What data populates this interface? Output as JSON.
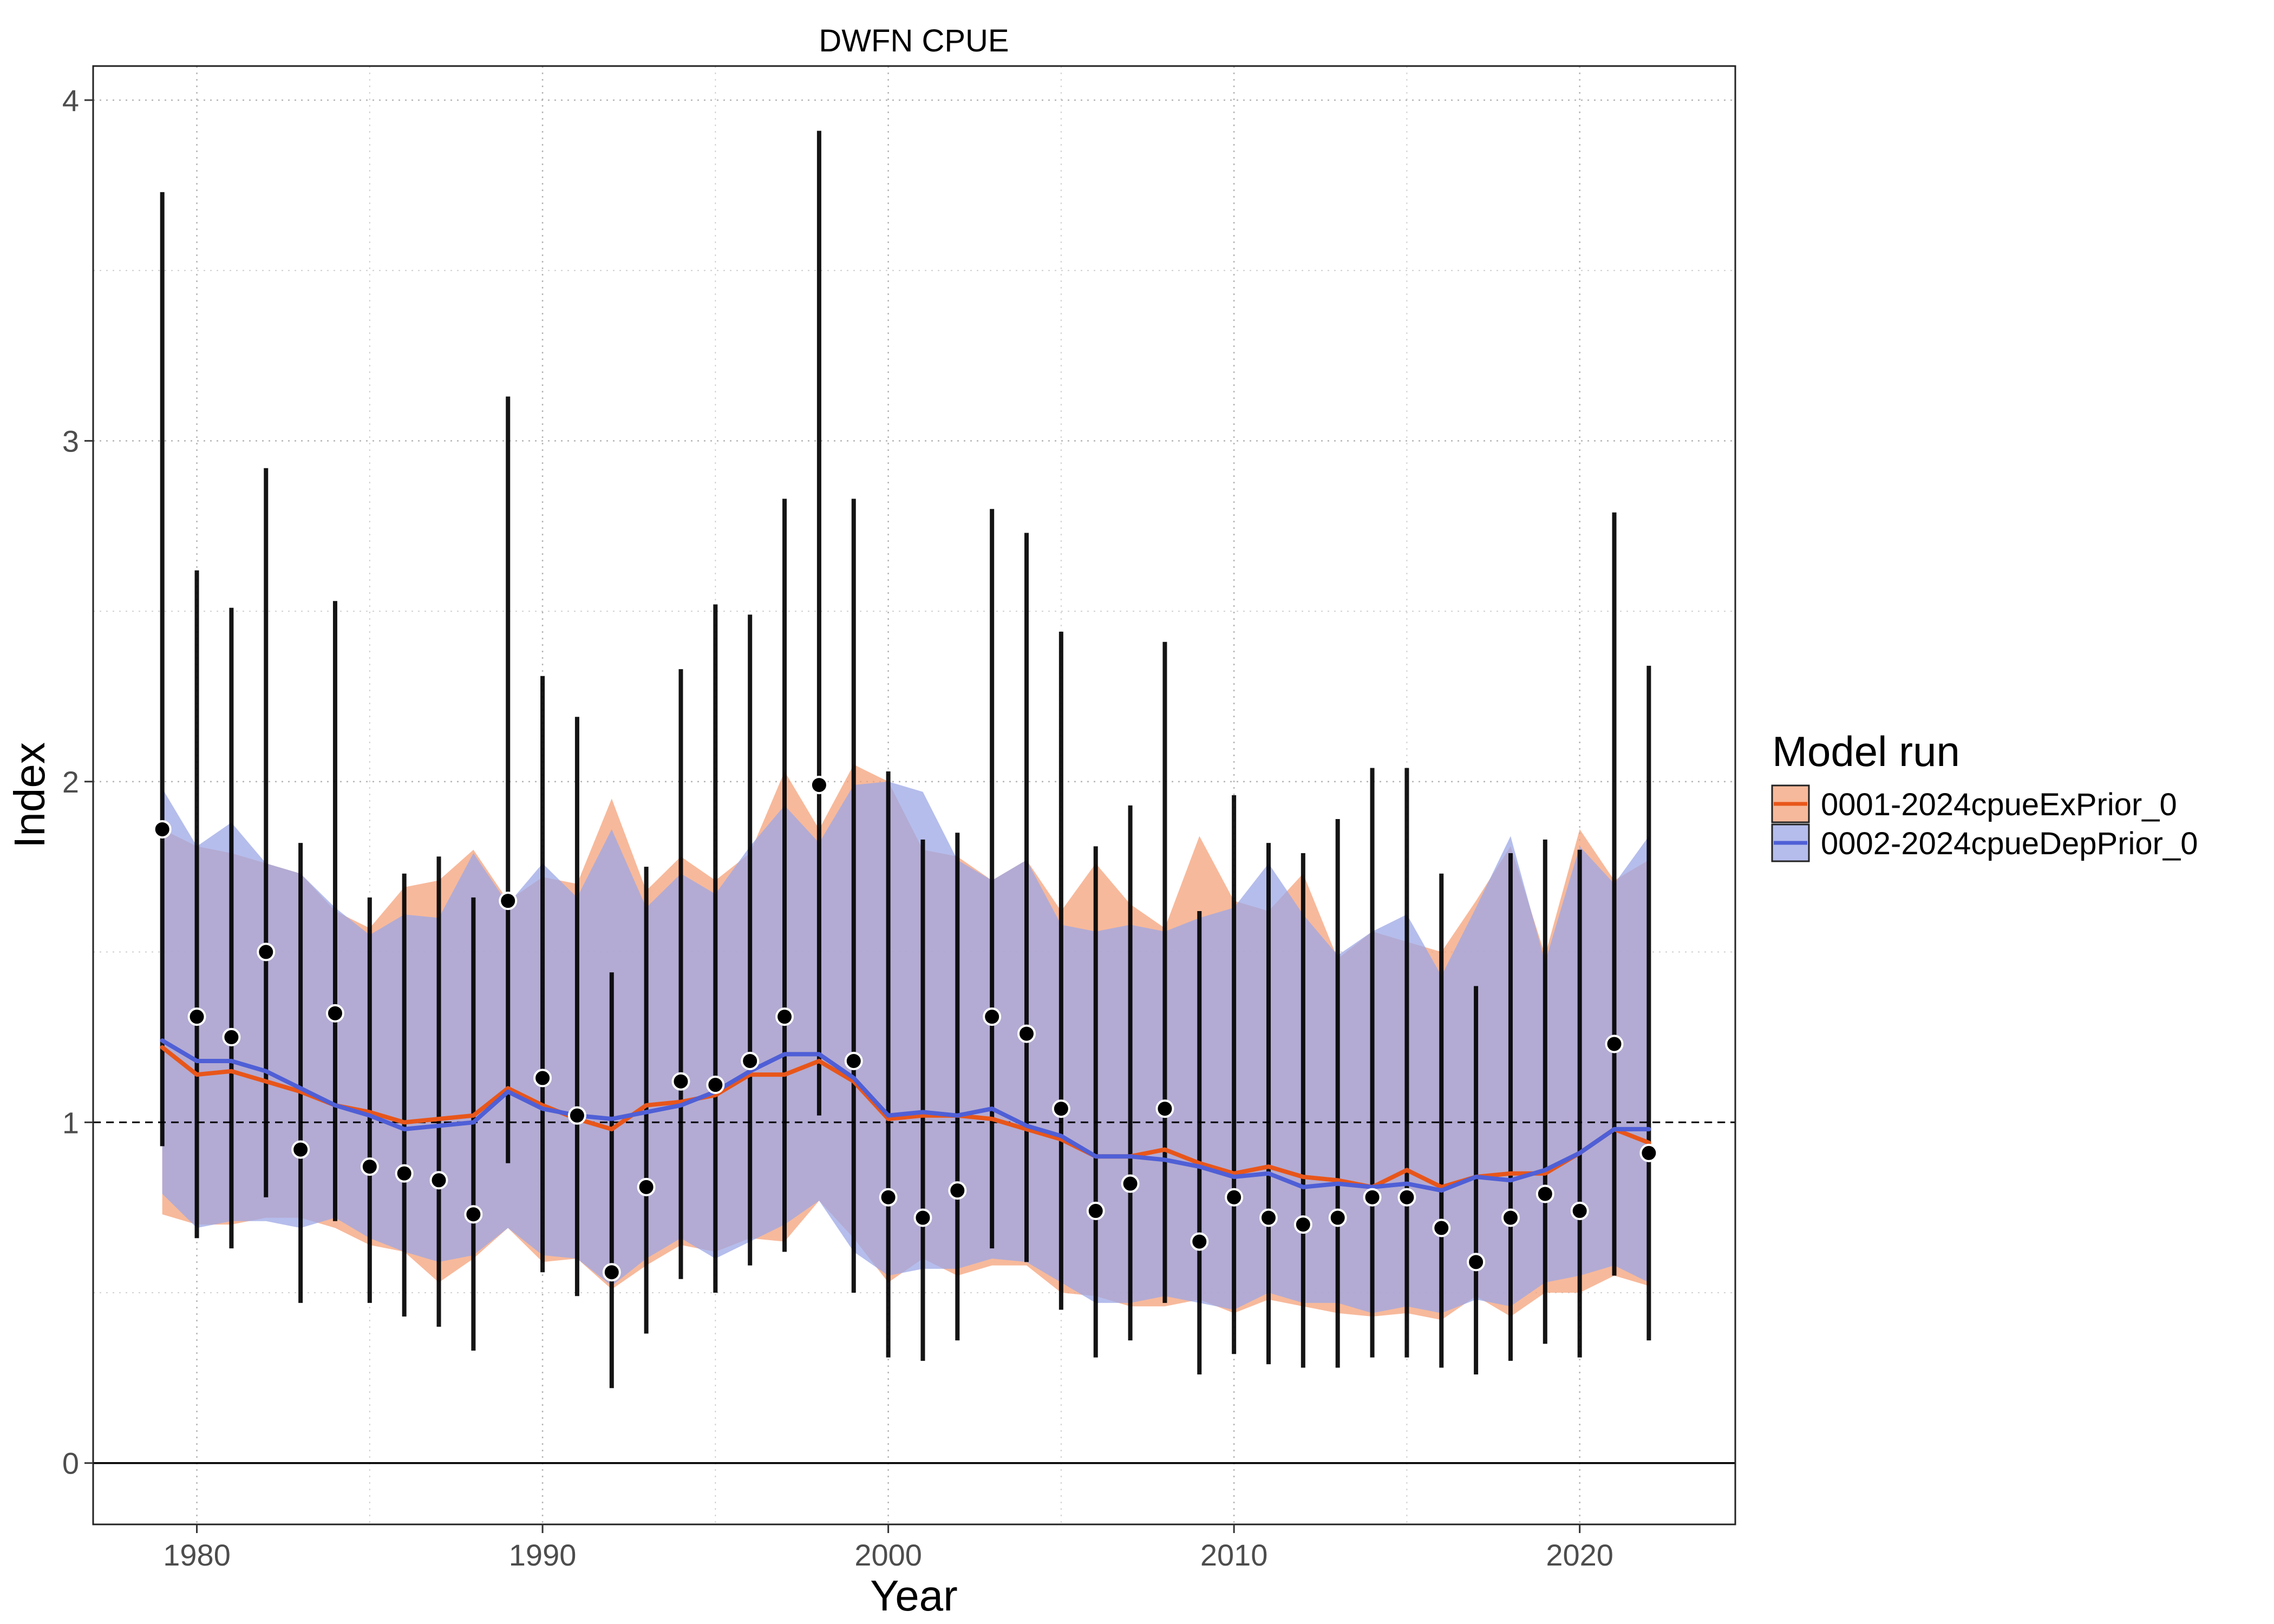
{
  "chart_data": {
    "type": "line",
    "title": "DWFN CPUE",
    "xlabel": "Year",
    "ylabel": "Index",
    "xlim": [
      1977,
      2024.5
    ],
    "ylim": [
      -0.18,
      4.1
    ],
    "x_ticks": [
      1980,
      1990,
      2000,
      2010,
      2020
    ],
    "y_ticks": [
      0,
      1,
      2,
      3,
      4
    ],
    "grid": true,
    "reference_line": 1,
    "legend": {
      "title": "Model run",
      "placement": "right"
    },
    "x": [
      1979,
      1980,
      1981,
      1982,
      1983,
      1984,
      1985,
      1986,
      1987,
      1988,
      1989,
      1990,
      1991,
      1992,
      1993,
      1994,
      1995,
      1996,
      1997,
      1998,
      1999,
      2000,
      2001,
      2002,
      2003,
      2004,
      2005,
      2006,
      2007,
      2008,
      2009,
      2010,
      2011,
      2012,
      2013,
      2014,
      2015,
      2016,
      2017,
      2018,
      2019,
      2020,
      2021,
      2022
    ],
    "observed": {
      "values": [
        1.86,
        1.31,
        1.25,
        1.5,
        0.92,
        1.32,
        0.87,
        0.85,
        0.83,
        0.73,
        1.65,
        1.13,
        1.02,
        0.56,
        0.81,
        1.12,
        1.11,
        1.18,
        1.31,
        1.99,
        1.18,
        0.78,
        0.72,
        0.8,
        1.31,
        1.26,
        1.04,
        0.74,
        0.82,
        1.04,
        0.65,
        0.78,
        0.72,
        0.7,
        0.72,
        0.78,
        0.78,
        0.69,
        0.59,
        0.72,
        0.79,
        0.74,
        1.23,
        0.91
      ],
      "lower": [
        0.93,
        0.66,
        0.63,
        0.78,
        0.47,
        0.71,
        0.47,
        0.43,
        0.4,
        0.33,
        0.88,
        0.56,
        0.49,
        0.22,
        0.38,
        0.54,
        0.5,
        0.58,
        0.62,
        1.02,
        0.5,
        0.31,
        0.3,
        0.36,
        0.63,
        0.59,
        0.45,
        0.31,
        0.36,
        0.47,
        0.26,
        0.32,
        0.29,
        0.28,
        0.28,
        0.31,
        0.31,
        0.28,
        0.26,
        0.3,
        0.35,
        0.31,
        0.55,
        0.36
      ],
      "upper": [
        3.73,
        2.62,
        2.51,
        2.92,
        1.82,
        2.53,
        1.66,
        1.73,
        1.78,
        1.66,
        3.13,
        2.31,
        2.19,
        1.44,
        1.75,
        2.33,
        2.52,
        2.49,
        2.83,
        3.91,
        2.83,
        2.03,
        1.83,
        1.85,
        2.8,
        2.73,
        2.44,
        1.81,
        1.93,
        2.41,
        1.62,
        1.96,
        1.82,
        1.79,
        1.89,
        2.04,
        2.04,
        1.73,
        1.4,
        1.79,
        1.83,
        1.8,
        2.79,
        2.34
      ]
    },
    "series": [
      {
        "name": "0001-2024cpueExPrior_0",
        "line_color": "#E8561A",
        "band_color": "#F4A27A",
        "values": [
          1.22,
          1.14,
          1.15,
          1.12,
          1.09,
          1.05,
          1.03,
          1.0,
          1.01,
          1.02,
          1.1,
          1.05,
          1.01,
          0.98,
          1.05,
          1.06,
          1.08,
          1.14,
          1.14,
          1.18,
          1.12,
          1.01,
          1.02,
          1.02,
          1.01,
          0.98,
          0.95,
          0.9,
          0.9,
          0.92,
          0.88,
          0.85,
          0.87,
          0.84,
          0.83,
          0.81,
          0.86,
          0.81,
          0.84,
          0.85,
          0.85,
          0.91,
          0.98,
          0.94
        ],
        "band_lower": [
          0.73,
          0.7,
          0.7,
          0.72,
          0.72,
          0.69,
          0.64,
          0.62,
          0.53,
          0.6,
          0.69,
          0.59,
          0.6,
          0.51,
          0.58,
          0.64,
          0.62,
          0.66,
          0.65,
          0.77,
          0.66,
          0.53,
          0.6,
          0.55,
          0.58,
          0.58,
          0.5,
          0.49,
          0.46,
          0.46,
          0.48,
          0.44,
          0.48,
          0.46,
          0.44,
          0.43,
          0.44,
          0.42,
          0.49,
          0.43,
          0.5,
          0.5,
          0.55,
          0.52
        ],
        "band_upper": [
          1.86,
          1.81,
          1.79,
          1.76,
          1.73,
          1.62,
          1.57,
          1.69,
          1.71,
          1.8,
          1.65,
          1.72,
          1.7,
          1.95,
          1.68,
          1.78,
          1.71,
          1.79,
          2.03,
          1.86,
          2.05,
          2.0,
          1.8,
          1.78,
          1.71,
          1.77,
          1.62,
          1.76,
          1.64,
          1.57,
          1.84,
          1.65,
          1.62,
          1.73,
          1.48,
          1.56,
          1.53,
          1.5,
          1.65,
          1.81,
          1.49,
          1.86,
          1.71,
          1.77
        ]
      },
      {
        "name": "0002-2024cpueDepPrior_0",
        "line_color": "#4F5FD6",
        "band_color": "#9CA7E6",
        "values": [
          1.24,
          1.18,
          1.18,
          1.15,
          1.1,
          1.05,
          1.02,
          0.98,
          0.99,
          1.0,
          1.09,
          1.04,
          1.02,
          1.01,
          1.03,
          1.05,
          1.09,
          1.15,
          1.2,
          1.2,
          1.13,
          1.02,
          1.03,
          1.02,
          1.04,
          0.99,
          0.96,
          0.9,
          0.9,
          0.89,
          0.87,
          0.84,
          0.85,
          0.81,
          0.82,
          0.81,
          0.82,
          0.8,
          0.84,
          0.83,
          0.86,
          0.91,
          0.98,
          0.98
        ],
        "band_lower": [
          0.79,
          0.69,
          0.71,
          0.71,
          0.69,
          0.72,
          0.66,
          0.62,
          0.59,
          0.61,
          0.69,
          0.61,
          0.6,
          0.52,
          0.6,
          0.66,
          0.6,
          0.65,
          0.7,
          0.77,
          0.62,
          0.55,
          0.57,
          0.57,
          0.6,
          0.59,
          0.53,
          0.47,
          0.47,
          0.49,
          0.47,
          0.45,
          0.5,
          0.47,
          0.47,
          0.44,
          0.46,
          0.44,
          0.48,
          0.46,
          0.53,
          0.55,
          0.58,
          0.53
        ],
        "band_upper": [
          1.98,
          1.81,
          1.88,
          1.76,
          1.73,
          1.63,
          1.55,
          1.61,
          1.6,
          1.79,
          1.64,
          1.76,
          1.66,
          1.86,
          1.63,
          1.73,
          1.67,
          1.81,
          1.93,
          1.82,
          1.99,
          2.0,
          1.97,
          1.77,
          1.71,
          1.77,
          1.58,
          1.56,
          1.58,
          1.56,
          1.6,
          1.63,
          1.76,
          1.61,
          1.49,
          1.56,
          1.61,
          1.43,
          1.63,
          1.84,
          1.47,
          1.81,
          1.7,
          1.84
        ]
      }
    ]
  }
}
